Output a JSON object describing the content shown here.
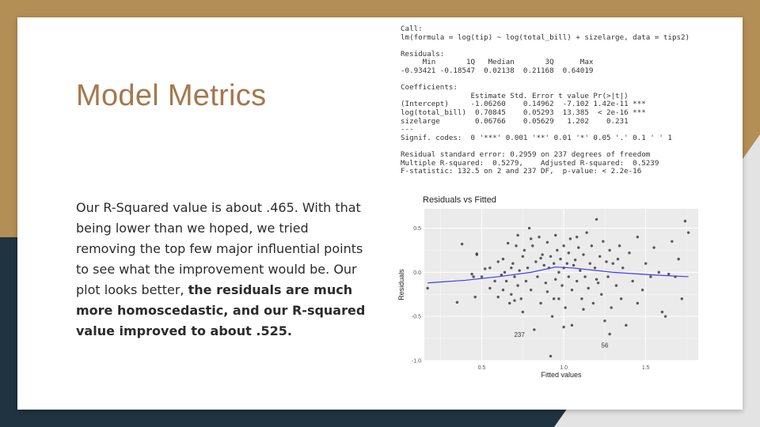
{
  "slide": {
    "title": "Model Metrics",
    "body_plain": "Our R-Squared value is about .465. With that being lower than we hoped, we tried removing the top few major influential points to see what the improvement would be. Our plot looks better, ",
    "body_bold": "the residuals are much more homoscedastic, and our R-squared value improved to about .525."
  },
  "console_lines": [
    "Call:",
    "lm(formula = log(tip) ~ log(total_bill) + sizelarge, data = tips2)",
    "",
    "Residuals:",
    "     Min       1Q   Median       3Q      Max",
    "-0.93421 -0.18547  0.02138  0.21168  0.64019",
    "",
    "Coefficients:",
    "                Estimate Std. Error t value Pr(>|t|)",
    "(Intercept)     -1.06260    0.14962  -7.102 1.42e-11 ***",
    "log(total_bill)  0.70845    0.05293  13.385  < 2e-16 ***",
    "sizelarge        0.06766    0.05629   1.202    0.231",
    "---",
    "Signif. codes:  0 '***' 0.001 '**' 0.01 '*' 0.05 '.' 0.1 ' ' 1",
    "",
    "Residual standard error: 0.2959 on 237 degrees of freedom",
    "Multiple R-squared:  0.5279,\tAdjusted R-squared:  0.5239",
    "F-statistic: 132.5 on 2 and 237 DF,  p-value: < 2.2e-16"
  ],
  "chart_data": {
    "type": "scatter",
    "title": "Residuals vs Fitted",
    "xlabel": "Fitted values",
    "ylabel": "Residuals",
    "xlim": [
      0.15,
      1.82
    ],
    "ylim": [
      -1.0,
      0.72
    ],
    "xticks": [
      {
        "v": 0.5,
        "label": "0.5"
      },
      {
        "v": 1.0,
        "label": "1.0"
      },
      {
        "v": 1.5,
        "label": "1.5"
      }
    ],
    "yticks": [
      {
        "v": 0.5,
        "label": "0.5"
      },
      {
        "v": 0.0,
        "label": "0.0"
      },
      {
        "v": -0.5,
        "label": "-0.5"
      },
      {
        "v": -1.0,
        "label": "-1.0"
      }
    ],
    "grid": true,
    "point_color": "#333333",
    "smooth_color": "#3c3cf0",
    "smooth": [
      [
        0.17,
        -0.12
      ],
      [
        0.4,
        -0.09
      ],
      [
        0.6,
        -0.05
      ],
      [
        0.8,
        0.0
      ],
      [
        0.95,
        0.06
      ],
      [
        1.05,
        0.05
      ],
      [
        1.3,
        0.0
      ],
      [
        1.55,
        -0.03
      ],
      [
        1.76,
        -0.05
      ]
    ],
    "labels": [
      {
        "x": 0.73,
        "y": -0.73,
        "text": "237"
      },
      {
        "x": 1.25,
        "y": -0.85,
        "text": "56"
      }
    ],
    "points": [
      [
        0.17,
        -0.18
      ],
      [
        0.35,
        -0.34
      ],
      [
        0.38,
        0.32
      ],
      [
        0.44,
        -0.02
      ],
      [
        0.45,
        -0.05
      ],
      [
        0.46,
        -0.28
      ],
      [
        0.47,
        0.2
      ],
      [
        0.47,
        0.21
      ],
      [
        0.5,
        -0.05
      ],
      [
        0.52,
        0.04
      ],
      [
        0.55,
        -0.18
      ],
      [
        0.58,
        -0.1
      ],
      [
        0.6,
        -0.28
      ],
      [
        0.6,
        0.12
      ],
      [
        0.62,
        -0.03
      ],
      [
        0.63,
        -0.2
      ],
      [
        0.64,
        0.0
      ],
      [
        0.65,
        -0.1
      ],
      [
        0.66,
        0.33
      ],
      [
        0.67,
        -0.35
      ],
      [
        0.68,
        -0.25
      ],
      [
        0.69,
        0.1
      ],
      [
        0.7,
        -0.05
      ],
      [
        0.7,
        -0.32
      ],
      [
        0.72,
        0.42
      ],
      [
        0.72,
        -0.15
      ],
      [
        0.73,
        0.02
      ],
      [
        0.74,
        -0.3
      ],
      [
        0.75,
        -0.45
      ],
      [
        0.75,
        0.18
      ],
      [
        0.76,
        0.25
      ],
      [
        0.77,
        -0.1
      ],
      [
        0.78,
        0.05
      ],
      [
        0.79,
        0.5
      ],
      [
        0.8,
        -0.2
      ],
      [
        0.81,
        0.3
      ],
      [
        0.82,
        -0.65
      ],
      [
        0.83,
        0.12
      ],
      [
        0.84,
        -0.05
      ],
      [
        0.85,
        0.4
      ],
      [
        0.86,
        -0.35
      ],
      [
        0.87,
        0.2
      ],
      [
        0.88,
        0.08
      ],
      [
        0.89,
        -0.12
      ],
      [
        0.9,
        0.34
      ],
      [
        0.9,
        -0.22
      ],
      [
        0.91,
        0.05
      ],
      [
        0.92,
        0.18
      ],
      [
        0.93,
        -0.5
      ],
      [
        0.94,
        0.1
      ],
      [
        0.95,
        0.42
      ],
      [
        0.95,
        -0.08
      ],
      [
        0.96,
        0.25
      ],
      [
        0.97,
        0.0
      ],
      [
        0.97,
        -0.3
      ],
      [
        0.98,
        0.15
      ],
      [
        0.99,
        -0.15
      ],
      [
        1.0,
        0.3
      ],
      [
        1.0,
        0.05
      ],
      [
        1.01,
        -0.4
      ],
      [
        1.02,
        0.1
      ],
      [
        1.03,
        0.22
      ],
      [
        1.03,
        -0.05
      ],
      [
        1.04,
        0.38
      ],
      [
        1.05,
        -0.2
      ],
      [
        1.05,
        -0.6
      ],
      [
        1.06,
        0.08
      ],
      [
        1.07,
        0.14
      ],
      [
        1.08,
        -0.1
      ],
      [
        1.09,
        0.28
      ],
      [
        1.1,
        0.02
      ],
      [
        1.11,
        -0.3
      ],
      [
        1.12,
        0.2
      ],
      [
        1.13,
        -0.05
      ],
      [
        1.14,
        0.45
      ],
      [
        1.15,
        -0.18
      ],
      [
        1.16,
        0.1
      ],
      [
        1.17,
        0.3
      ],
      [
        1.18,
        -0.35
      ],
      [
        1.19,
        0.05
      ],
      [
        1.2,
        0.6
      ],
      [
        1.21,
        -0.12
      ],
      [
        1.22,
        0.18
      ],
      [
        1.23,
        -0.25
      ],
      [
        1.24,
        0.35
      ],
      [
        1.25,
        -0.55
      ],
      [
        1.26,
        0.12
      ],
      [
        1.27,
        -0.05
      ],
      [
        1.28,
        0.25
      ],
      [
        1.29,
        -0.4
      ],
      [
        1.3,
        0.1
      ],
      [
        1.32,
        -0.15
      ],
      [
        1.34,
        0.3
      ],
      [
        1.35,
        -0.3
      ],
      [
        1.36,
        0.05
      ],
      [
        1.38,
        -0.6
      ],
      [
        1.4,
        0.22
      ],
      [
        1.42,
        -0.1
      ],
      [
        1.45,
        0.4
      ],
      [
        1.48,
        -0.2
      ],
      [
        1.5,
        0.1
      ],
      [
        1.53,
        -0.05
      ],
      [
        1.55,
        0.28
      ],
      [
        1.58,
        0.0
      ],
      [
        1.6,
        -0.45
      ],
      [
        1.62,
        -0.5
      ],
      [
        1.64,
        -0.02
      ],
      [
        1.66,
        0.35
      ],
      [
        1.68,
        -0.05
      ],
      [
        1.7,
        0.15
      ],
      [
        1.72,
        -0.3
      ],
      [
        1.74,
        0.58
      ],
      [
        1.76,
        0.45
      ],
      [
        0.92,
        -0.95
      ],
      [
        1.0,
        -0.62
      ],
      [
        0.55,
        0.05
      ],
      [
        0.63,
        0.15
      ],
      [
        0.68,
        0.05
      ],
      [
        0.71,
        0.3
      ],
      [
        0.8,
        0.38
      ],
      [
        0.86,
        0.16
      ],
      [
        0.94,
        -0.3
      ],
      [
        1.08,
        0.4
      ],
      [
        1.12,
        -0.42
      ],
      [
        1.2,
        -0.08
      ],
      [
        1.28,
        -0.7
      ],
      [
        1.33,
        0.15
      ],
      [
        1.45,
        -0.35
      ]
    ]
  }
}
